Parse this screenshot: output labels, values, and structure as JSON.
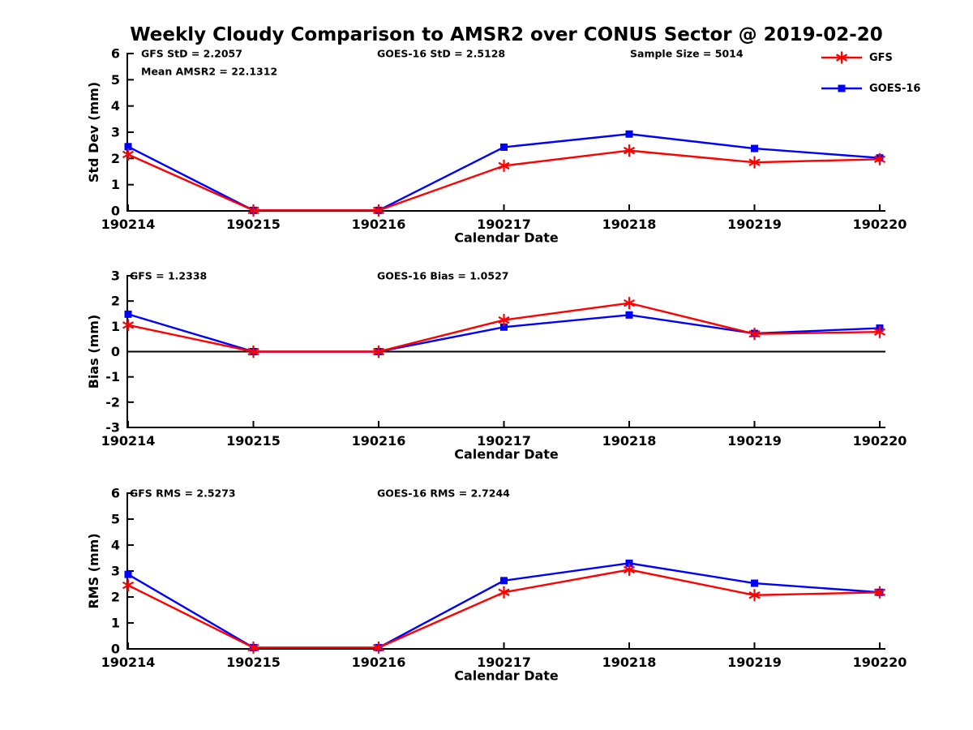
{
  "page": {
    "title": "Weekly Cloudy Comparison to AMSR2 over CONUS Sector @ 2019-02-20"
  },
  "legend": {
    "position": "top-right",
    "items": [
      {
        "label": "GFS",
        "color": "#ff0000",
        "marker": "asterisk"
      },
      {
        "label": "GOES-16",
        "color": "#0000ff",
        "marker": "square"
      }
    ]
  },
  "chart_data": [
    {
      "type": "line",
      "name": "std-dev",
      "xlabel": "Calendar Date",
      "ylabel": "Std Dev (mm)",
      "ylim": [
        0,
        6
      ],
      "yticks": [
        0,
        1,
        2,
        3,
        4,
        5,
        6
      ],
      "grid": false,
      "zero_line": false,
      "categories": [
        "190214",
        "190215",
        "190216",
        "190217",
        "190218",
        "190219",
        "190220"
      ],
      "series": [
        {
          "name": "GFS",
          "color": "#ff0000",
          "marker": "asterisk",
          "values": [
            2.15,
            0.02,
            0.02,
            1.72,
            2.3,
            1.85,
            1.97
          ]
        },
        {
          "name": "GOES-16",
          "color": "#0000ff",
          "marker": "square",
          "values": [
            2.45,
            0.02,
            0.02,
            2.43,
            2.93,
            2.38,
            2.02
          ]
        }
      ],
      "annotations": [
        {
          "text": "GFS StD = 2.2057",
          "slot": "left"
        },
        {
          "text": "Mean AMSR2 = 22.1312",
          "slot": "left2"
        },
        {
          "text": "GOES-16 StD = 2.5128",
          "slot": "mid"
        },
        {
          "text": "Sample Size = 5014",
          "slot": "right"
        }
      ]
    },
    {
      "type": "line",
      "name": "bias",
      "xlabel": "Calendar Date",
      "ylabel": "Bias (mm)",
      "ylim": [
        -3,
        3
      ],
      "yticks": [
        -3,
        -2,
        -1,
        0,
        1,
        2,
        3
      ],
      "grid": false,
      "zero_line": true,
      "categories": [
        "190214",
        "190215",
        "190216",
        "190217",
        "190218",
        "190219",
        "190220"
      ],
      "series": [
        {
          "name": "GFS",
          "color": "#ff0000",
          "marker": "asterisk",
          "values": [
            1.05,
            0.0,
            0.0,
            1.25,
            1.92,
            0.7,
            0.78
          ]
        },
        {
          "name": "GOES-16",
          "color": "#0000ff",
          "marker": "square",
          "values": [
            1.48,
            0.0,
            0.0,
            0.97,
            1.45,
            0.72,
            0.93
          ]
        }
      ],
      "annotations": [
        {
          "text": "GFS = 1.2338",
          "slot": "left"
        },
        {
          "text": "GOES-16 Bias  = 1.0527",
          "slot": "mid"
        }
      ]
    },
    {
      "type": "line",
      "name": "rms",
      "xlabel": "Calendar Date",
      "ylabel": "RMS (mm)",
      "ylim": [
        0,
        6
      ],
      "yticks": [
        0,
        1,
        2,
        3,
        4,
        5,
        6
      ],
      "grid": false,
      "zero_line": false,
      "categories": [
        "190214",
        "190215",
        "190216",
        "190217",
        "190218",
        "190219",
        "190220"
      ],
      "series": [
        {
          "name": "GFS",
          "color": "#ff0000",
          "marker": "asterisk",
          "values": [
            2.45,
            0.05,
            0.05,
            2.18,
            3.05,
            2.07,
            2.18
          ]
        },
        {
          "name": "GOES-16",
          "color": "#0000ff",
          "marker": "square",
          "values": [
            2.87,
            0.05,
            0.05,
            2.63,
            3.3,
            2.53,
            2.18
          ]
        }
      ],
      "annotations": [
        {
          "text": "GFS RMS = 2.5273",
          "slot": "left"
        },
        {
          "text": "GOES-16 RMS = 2.7244",
          "slot": "mid"
        }
      ]
    }
  ]
}
